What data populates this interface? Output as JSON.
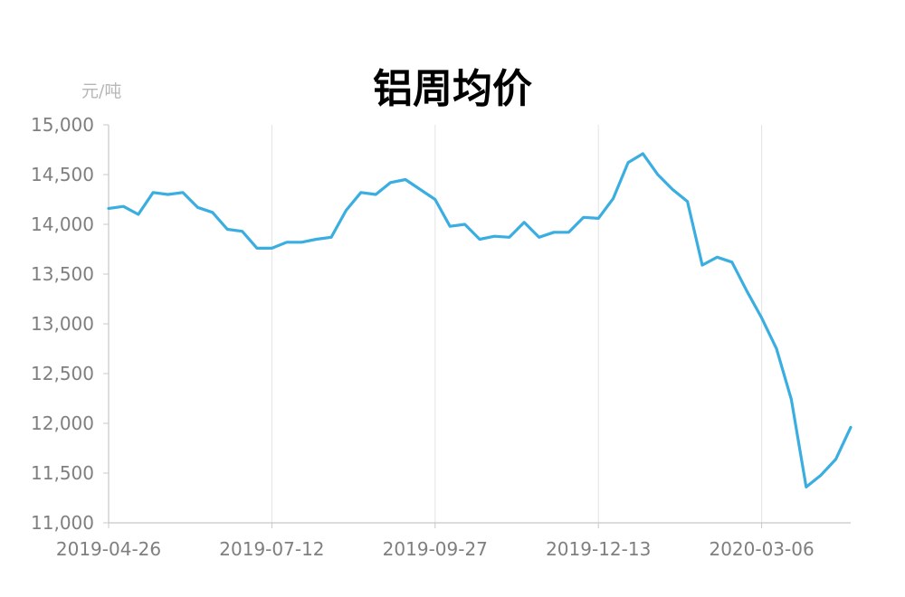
{
  "chart_data": {
    "type": "line",
    "title": "铝周均价",
    "unit_label": "元/吨",
    "color": "#3aaee0",
    "ylim": [
      11000,
      15000
    ],
    "yticks": [
      11000,
      11500,
      12000,
      12500,
      13000,
      13500,
      14000,
      14500,
      15000
    ],
    "ytick_labels": [
      "11,000",
      "11,500",
      "12,000",
      "12,500",
      "13,000",
      "13,500",
      "14,000",
      "14,500",
      "15,000"
    ],
    "xtick_labels": [
      "2019-04-26",
      "2019-07-12",
      "2019-09-27",
      "2019-12-13",
      "2020-03-06"
    ],
    "xtick_index": [
      0,
      11,
      22,
      33,
      44
    ],
    "grid": "vertical",
    "series": [
      {
        "values": [
          14160,
          14180,
          14100,
          14320,
          14300,
          14320,
          14170,
          14120,
          13950,
          13930,
          13760,
          13760,
          13820,
          13820,
          13850,
          13870,
          14140,
          14320,
          14300,
          14420,
          14450,
          14350,
          14250,
          13980,
          14000,
          13850,
          13880,
          13870,
          14020,
          13870,
          13920,
          13920,
          14070,
          14060,
          14260,
          14620,
          14710,
          14500,
          14350,
          14230,
          13590,
          13670,
          13620,
          13330,
          13060,
          12750,
          12240,
          11360,
          11480,
          11640,
          11960
        ]
      }
    ]
  }
}
